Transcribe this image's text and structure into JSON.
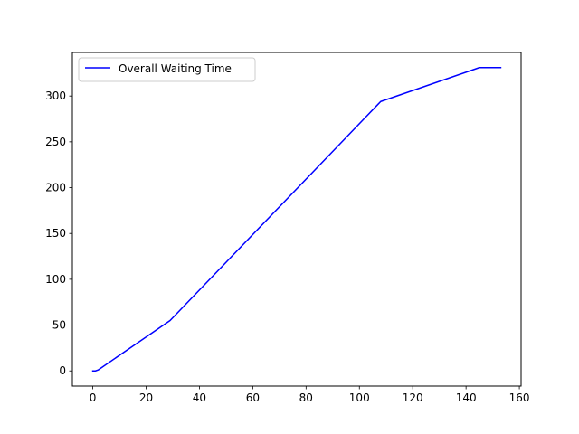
{
  "chart_data": {
    "type": "line",
    "title": "",
    "xlabel": "",
    "ylabel": "",
    "xlim": [
      -7.65,
      160.65
    ],
    "ylim": [
      -16.55,
      347.55
    ],
    "xticks": [
      0,
      20,
      40,
      60,
      80,
      100,
      120,
      140,
      160
    ],
    "yticks": [
      0,
      50,
      100,
      150,
      200,
      250,
      300
    ],
    "grid": false,
    "legend": {
      "position": "upper-left"
    },
    "series": [
      {
        "name": "Overall Waiting Time",
        "color": "#0000ff",
        "points": [
          [
            0,
            0
          ],
          [
            1,
            0
          ],
          [
            2,
            1
          ],
          [
            29,
            55
          ],
          [
            107,
            291
          ],
          [
            108,
            294
          ],
          [
            110,
            296
          ],
          [
            145,
            331
          ],
          [
            153,
            331
          ]
        ]
      }
    ]
  }
}
